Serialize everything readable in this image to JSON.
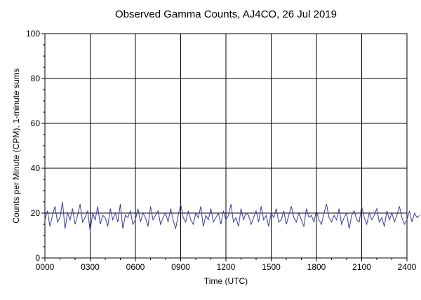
{
  "chart_data": {
    "type": "line",
    "title": "Observed Gamma Counts, AJ4CO, 26 Jul 2019",
    "xlabel": "Time (UTC)",
    "ylabel": "Counts per Minute (CPM), 1-minute sums",
    "xlim": [
      0,
      1440
    ],
    "ylim": [
      0,
      100
    ],
    "x_unit": "minutes",
    "x_ticks": [
      {
        "value": 0,
        "label": "0000"
      },
      {
        "value": 180,
        "label": "0300"
      },
      {
        "value": 360,
        "label": "0600"
      },
      {
        "value": 540,
        "label": "0900"
      },
      {
        "value": 720,
        "label": "1200"
      },
      {
        "value": 900,
        "label": "1500"
      },
      {
        "value": 1080,
        "label": "1800"
      },
      {
        "value": 1260,
        "label": "2100"
      },
      {
        "value": 1440,
        "label": "2400"
      }
    ],
    "y_ticks": [
      {
        "value": 0,
        "label": "0"
      },
      {
        "value": 20,
        "label": "20"
      },
      {
        "value": 40,
        "label": "40"
      },
      {
        "value": 60,
        "label": "60"
      },
      {
        "value": 80,
        "label": "80"
      },
      {
        "value": 100,
        "label": "100"
      }
    ],
    "grid": true,
    "line_color": "#3a3a9e",
    "series": [
      {
        "name": "",
        "x_step": 10,
        "values": [
          17,
          21,
          14,
          19,
          23,
          16,
          18,
          25,
          13,
          20,
          17,
          22,
          15,
          19,
          24,
          16,
          18,
          21,
          12,
          20,
          17,
          23,
          15,
          19,
          18,
          14,
          22,
          17,
          20,
          16,
          24,
          13,
          19,
          18,
          21,
          15,
          17,
          22,
          16,
          20,
          18,
          14,
          23,
          17,
          19,
          21,
          15,
          18,
          20,
          16,
          22,
          17,
          13,
          19,
          24,
          18,
          16,
          21,
          17,
          15,
          20,
          18,
          23,
          14,
          19,
          17,
          22,
          16,
          18,
          20,
          15,
          21,
          17,
          19,
          24,
          16,
          18,
          14,
          22,
          17,
          20,
          19,
          15,
          18,
          21,
          16,
          23,
          17,
          19,
          14,
          20,
          18,
          22,
          16,
          17,
          21,
          15,
          19,
          23,
          18,
          16,
          20,
          17,
          14,
          22,
          18,
          19,
          16,
          21,
          17,
          15,
          20,
          24,
          18,
          16,
          19,
          17,
          22,
          15,
          18,
          20,
          13,
          19,
          21,
          17,
          16,
          23,
          18,
          15,
          20,
          17,
          19,
          22,
          16,
          18,
          14,
          21,
          17,
          20,
          16,
          19,
          23,
          18,
          15,
          17,
          21,
          16,
          20,
          18,
          19
        ]
      }
    ]
  }
}
